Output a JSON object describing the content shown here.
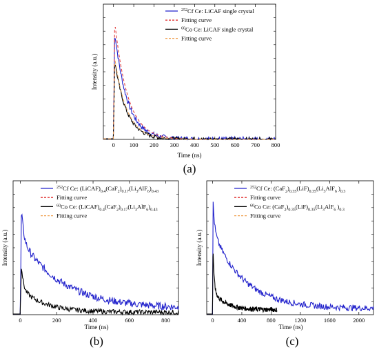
{
  "chart_data": [
    {
      "type": "line",
      "panel_label": "(a)",
      "xlabel": "Time (ns)",
      "ylabel": "Intensity (a.u.)",
      "xlim": [
        -50,
        800
      ],
      "xticks": [
        0,
        100,
        200,
        300,
        400,
        500,
        600,
        700,
        800
      ],
      "ylim": [
        0,
        1.05
      ],
      "legend_position": "top-right",
      "legend": [
        {
          "sup": "252",
          "text": "Cf Ce: LiCAF single crystal",
          "color": "#2222cc",
          "dash": "solid"
        },
        {
          "text": "Fitting curve",
          "color": "#e03030",
          "dash": "dashed"
        },
        {
          "sup": "60",
          "text": "Co Ce: LiCAF single crystal",
          "color": "#000000",
          "dash": "solid"
        },
        {
          "text": "Fitting curve",
          "color": "#f0a050",
          "dash": "dashed"
        }
      ],
      "series": [
        {
          "name": "252Cf Ce: LiCAF single crystal",
          "color": "#2222cc",
          "peak": 0.92,
          "decay": [
            {
              "a": 0.92,
              "tau": 62
            }
          ],
          "noise": 0.02
        },
        {
          "name": "Fitting curve",
          "color": "#e03030",
          "dashed": true,
          "peak": 1.0,
          "decay": [
            {
              "a": 1.0,
              "tau": 65
            }
          ]
        },
        {
          "name": "60Co Ce: LiCAF single crystal",
          "color": "#000000",
          "peak": 0.68,
          "decay": [
            {
              "a": 0.68,
              "tau": 58
            }
          ],
          "noise": 0.015
        },
        {
          "name": "Fitting curve",
          "color": "#f0a050",
          "dashed": true,
          "peak": 0.7,
          "decay": [
            {
              "a": 0.7,
              "tau": 60
            }
          ]
        }
      ]
    },
    {
      "type": "line",
      "panel_label": "(b)",
      "xlabel": "Time (ns)",
      "ylabel": "Intensity (a.u.)",
      "xlim": [
        -40,
        870
      ],
      "xticks": [
        0,
        200,
        400,
        600,
        800
      ],
      "ylim": [
        0,
        1.1
      ],
      "legend_position": "top-right",
      "legend": [
        {
          "sup": "252",
          "text": "Cf Ce: (LiCAF)",
          "tail": [
            [
              "sub",
              "0.4"
            ],
            [
              "t",
              "(CaF"
            ],
            [
              "sub",
              "2"
            ],
            [
              "t",
              ")"
            ],
            [
              "sub",
              "0.17"
            ],
            [
              "t",
              "(Li"
            ],
            [
              "sub",
              "3"
            ],
            [
              "t",
              "AlF"
            ],
            [
              "sub",
              "6"
            ],
            [
              "t",
              ")"
            ],
            [
              "sub",
              "0.43"
            ]
          ],
          "color": "#2222cc",
          "dash": "solid"
        },
        {
          "text": "Fitting curve",
          "color": "#e03030",
          "dash": "dashed"
        },
        {
          "sup": "60",
          "text": "Co  Ce: (LiCAF)",
          "tail": [
            [
              "sub",
              "0.4"
            ],
            [
              "t",
              "(CaF"
            ],
            [
              "sub",
              "2"
            ],
            [
              "t",
              ")"
            ],
            [
              "sub",
              "0.17"
            ],
            [
              "t",
              "(Li"
            ],
            [
              "sub",
              "3"
            ],
            [
              "t",
              "AlF"
            ],
            [
              "sub",
              "6"
            ],
            [
              "t",
              ")"
            ],
            [
              "sub",
              "0.43"
            ]
          ],
          "color": "#000000",
          "dash": "solid"
        },
        {
          "text": "Fitting curve",
          "color": "#f0a050",
          "dash": "dashed"
        }
      ],
      "series": [
        {
          "name": "252Cf Ce: (LiCAF)0.4(CaF2)0.17(Li3AlF6)0.43",
          "color": "#2222cc",
          "peak": 1.0,
          "decay": [
            {
              "a": 0.42,
              "tau": 12
            },
            {
              "a": 0.58,
              "tau": 230
            }
          ],
          "base": 0.05,
          "noise": 0.03
        },
        {
          "name": "60Co Ce: (LiCAF)0.4(CaF2)0.17(Li3AlF6)0.43",
          "color": "#000000",
          "peak": 0.58,
          "decay": [
            {
              "a": 0.38,
              "tau": 10
            },
            {
              "a": 0.2,
              "tau": 130
            }
          ],
          "base": 0.02,
          "noise": 0.02
        }
      ]
    },
    {
      "type": "line",
      "panel_label": "(c)",
      "xlabel": "Time (ns)",
      "ylabel": "Intensity (a.u.)",
      "xlim": [
        -80,
        2200
      ],
      "xticks": [
        0,
        400,
        800,
        1200,
        1600,
        2000
      ],
      "ylim": [
        0,
        1.1
      ],
      "legend_position": "top-right",
      "legend": [
        {
          "sup": "252",
          "text": "Cf Ce: (CaF",
          "tail": [
            [
              "sub",
              "2"
            ],
            [
              "t",
              ")"
            ],
            [
              "sub",
              "0.35"
            ],
            [
              "t",
              "(LiF)"
            ],
            [
              "sub",
              "0.35"
            ],
            [
              "t",
              "(Li"
            ],
            [
              "sub",
              "3"
            ],
            [
              "t",
              "AlF"
            ],
            [
              "sub",
              "6"
            ],
            [
              "t",
              " )"
            ],
            [
              "sub",
              "0.3"
            ]
          ],
          "color": "#2222cc",
          "dash": "solid"
        },
        {
          "text": "Fitting curve",
          "color": "#e03030",
          "dash": "dashed"
        },
        {
          "sup": "60",
          "text": "Co Ce: (CaF",
          "tail": [
            [
              "sub",
              "2"
            ],
            [
              "t",
              ")"
            ],
            [
              "sub",
              "0.35"
            ],
            [
              "t",
              "(LiF)"
            ],
            [
              "sub",
              "0.35"
            ],
            [
              "t",
              "(Li"
            ],
            [
              "sub",
              "3"
            ],
            [
              "t",
              "AlF"
            ],
            [
              "sub",
              "6"
            ],
            [
              "t",
              " )"
            ],
            [
              "sub",
              "0.3"
            ]
          ],
          "color": "#000000",
          "dash": "solid"
        },
        {
          "text": "Fitting curve",
          "color": "#f0a050",
          "dash": "dashed"
        }
      ],
      "series": [
        {
          "name": "252Cf Ce: (CaF2)0.35(LiF)0.35(Li3AlF6)0.3",
          "color": "#2222cc",
          "peak": 1.0,
          "decay": [
            {
              "a": 0.35,
              "tau": 20
            },
            {
              "a": 0.65,
              "tau": 420
            }
          ],
          "base": 0.05,
          "noise": 0.025
        },
        {
          "name": "60Co Ce: (CaF2)0.35(LiF)0.35(Li3AlF6)0.3",
          "color": "#000000",
          "xmax": 880,
          "peak": 0.72,
          "decay": [
            {
              "a": 0.56,
              "tau": 15
            },
            {
              "a": 0.16,
              "tau": 170
            }
          ],
          "base": 0.04,
          "noise": 0.02
        }
      ]
    }
  ]
}
